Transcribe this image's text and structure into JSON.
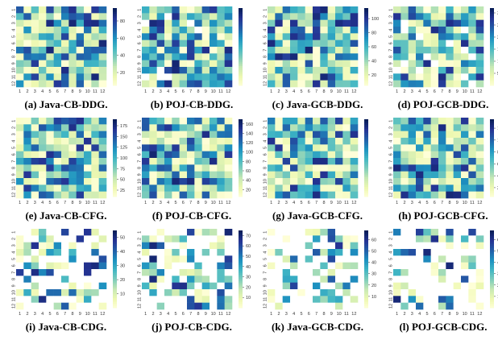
{
  "chart_data": [
    {
      "type": "heatmap",
      "title": "(a) Java-CB-DDG.",
      "colorbar_ticks": [
        20,
        40,
        60,
        80
      ],
      "vmin": 5,
      "vmax": 95,
      "seed": 11,
      "density": 1.0,
      "x": [
        "1",
        "2",
        "3",
        "4",
        "5",
        "6",
        "7",
        "8",
        "9",
        "10",
        "11",
        "12"
      ],
      "y": [
        "1",
        "2",
        "3",
        "4",
        "5",
        "6",
        "7",
        "8",
        "9",
        "10",
        "11",
        "12"
      ]
    },
    {
      "type": "heatmap",
      "title": "(b) POJ-CB-DDG.",
      "colorbar_ticks": [],
      "vmin": 0,
      "vmax": 100,
      "seed": 23,
      "density": 0.95,
      "x": [
        "1",
        "2",
        "3",
        "4",
        "5",
        "6",
        "7",
        "8",
        "9",
        "10",
        "11",
        "12"
      ],
      "y": [
        "1",
        "2",
        "3",
        "4",
        "5",
        "6",
        "7",
        "8",
        "9",
        "10",
        "11",
        "12"
      ]
    },
    {
      "type": "heatmap",
      "title": "(c) Java-GCB-DDG.",
      "colorbar_ticks": [
        20,
        40,
        60,
        80,
        100
      ],
      "vmin": 5,
      "vmax": 115,
      "seed": 37,
      "density": 1.0,
      "x": [
        "1",
        "2",
        "3",
        "4",
        "5",
        "6",
        "7",
        "8",
        "9",
        "10",
        "11",
        "12"
      ],
      "y": [
        "1",
        "2",
        "3",
        "4",
        "5",
        "6",
        "7",
        "8",
        "9",
        "10",
        "11",
        "12"
      ]
    },
    {
      "type": "heatmap",
      "title": "(d) POJ-GCB-DDG.",
      "colorbar_ticks": [
        5,
        10,
        15,
        20,
        25,
        30
      ],
      "vmin": 0,
      "vmax": 32,
      "seed": 41,
      "density": 0.9,
      "x": [
        "1",
        "2",
        "3",
        "4",
        "5",
        "6",
        "7",
        "8",
        "9",
        "10",
        "11",
        "12"
      ],
      "y": [
        "1",
        "2",
        "3",
        "4",
        "5",
        "6",
        "7",
        "8",
        "9",
        "10",
        "11",
        "12"
      ]
    },
    {
      "type": "heatmap",
      "title": "(e) Java-CB-CFG.",
      "colorbar_ticks": [
        25,
        50,
        75,
        100,
        125,
        150,
        175
      ],
      "vmin": 10,
      "vmax": 190,
      "seed": 53,
      "density": 1.0,
      "x": [
        "1",
        "2",
        "3",
        "4",
        "5",
        "6",
        "7",
        "8",
        "9",
        "10",
        "11",
        "12"
      ],
      "y": [
        "1",
        "2",
        "3",
        "4",
        "5",
        "6",
        "7",
        "8",
        "9",
        "10",
        "11",
        "12"
      ]
    },
    {
      "type": "heatmap",
      "title": "(f) POJ-CB-CFG.",
      "colorbar_ticks": [
        20,
        40,
        60,
        80,
        100,
        120,
        140,
        160
      ],
      "vmin": 5,
      "vmax": 170,
      "seed": 67,
      "density": 1.0,
      "x": [
        "1",
        "2",
        "3",
        "4",
        "5",
        "6",
        "7",
        "8",
        "9",
        "10",
        "11",
        "12"
      ],
      "y": [
        "1",
        "2",
        "3",
        "4",
        "5",
        "6",
        "7",
        "8",
        "9",
        "10",
        "11",
        "12"
      ]
    },
    {
      "type": "heatmap",
      "title": "(g) Java-GCB-CFG.",
      "colorbar_ticks": [],
      "vmin": 0,
      "vmax": 100,
      "seed": 71,
      "density": 1.0,
      "x": [
        "1",
        "2",
        "3",
        "4",
        "5",
        "6",
        "7",
        "8",
        "9",
        "10",
        "11",
        "12"
      ],
      "y": [
        "1",
        "2",
        "3",
        "4",
        "5",
        "6",
        "7",
        "8",
        "9",
        "10",
        "11",
        "12"
      ]
    },
    {
      "type": "heatmap",
      "title": "(h) POJ-GCB-CFG.",
      "colorbar_ticks": [
        20,
        40,
        60,
        80,
        100,
        120
      ],
      "vmin": 5,
      "vmax": 135,
      "seed": 83,
      "density": 1.0,
      "x": [
        "1",
        "2",
        "3",
        "4",
        "5",
        "6",
        "7",
        "8",
        "9",
        "10",
        "11",
        "12"
      ],
      "y": [
        "1",
        "2",
        "3",
        "4",
        "5",
        "6",
        "7",
        "8",
        "9",
        "10",
        "11",
        "12"
      ]
    },
    {
      "type": "heatmap",
      "title": "(i) Java-CB-CDG.",
      "colorbar_ticks": [
        10,
        20,
        30,
        40,
        50
      ],
      "vmin": 0,
      "vmax": 55,
      "seed": 97,
      "density": 0.45,
      "x": [
        "1",
        "2",
        "3",
        "4",
        "5",
        "6",
        "7",
        "8",
        "9",
        "10",
        "11",
        "12"
      ],
      "y": [
        "1",
        "2",
        "3",
        "4",
        "5",
        "6",
        "7",
        "8",
        "9",
        "10",
        "11",
        "12"
      ]
    },
    {
      "type": "heatmap",
      "title": "(j) POJ-CB-CDG.",
      "colorbar_ticks": [
        10,
        20,
        30,
        40,
        50,
        60,
        70
      ],
      "vmin": 0,
      "vmax": 75,
      "seed": 101,
      "density": 0.55,
      "x": [
        "1",
        "2",
        "3",
        "4",
        "5",
        "6",
        "7",
        "8",
        "9",
        "10",
        "11",
        "12"
      ],
      "y": [
        "1",
        "2",
        "3",
        "4",
        "5",
        "6",
        "7",
        "8",
        "9",
        "10",
        "11",
        "12"
      ]
    },
    {
      "type": "heatmap",
      "title": "(k) Java-GCB-CDG.",
      "colorbar_ticks": [
        10,
        20,
        30,
        40,
        50,
        60
      ],
      "vmin": 0,
      "vmax": 68,
      "seed": 113,
      "density": 0.4,
      "x": [
        "1",
        "2",
        "3",
        "4",
        "5",
        "6",
        "7",
        "8",
        "9",
        "10",
        "11",
        "12"
      ],
      "y": [
        "1",
        "2",
        "3",
        "4",
        "5",
        "6",
        "7",
        "8",
        "9",
        "10",
        "11",
        "12"
      ]
    },
    {
      "type": "heatmap",
      "title": "(l) POJ-GCB-CDG.",
      "colorbar_ticks": [
        10,
        20,
        30,
        40,
        50,
        60
      ],
      "vmin": 0,
      "vmax": 68,
      "seed": 127,
      "density": 0.4,
      "x": [
        "1",
        "2",
        "3",
        "4",
        "5",
        "6",
        "7",
        "8",
        "9",
        "10",
        "11",
        "12"
      ],
      "y": [
        "1",
        "2",
        "3",
        "4",
        "5",
        "6",
        "7",
        "8",
        "9",
        "10",
        "11",
        "12"
      ]
    }
  ],
  "colors": {
    "colormap": [
      "#ffffd9",
      "#edf8b1",
      "#c7e9b4",
      "#7fcdbb",
      "#41b6c4",
      "#1d91c0",
      "#225ea8",
      "#253494",
      "#081d58"
    ],
    "empty": "#ffffff"
  }
}
